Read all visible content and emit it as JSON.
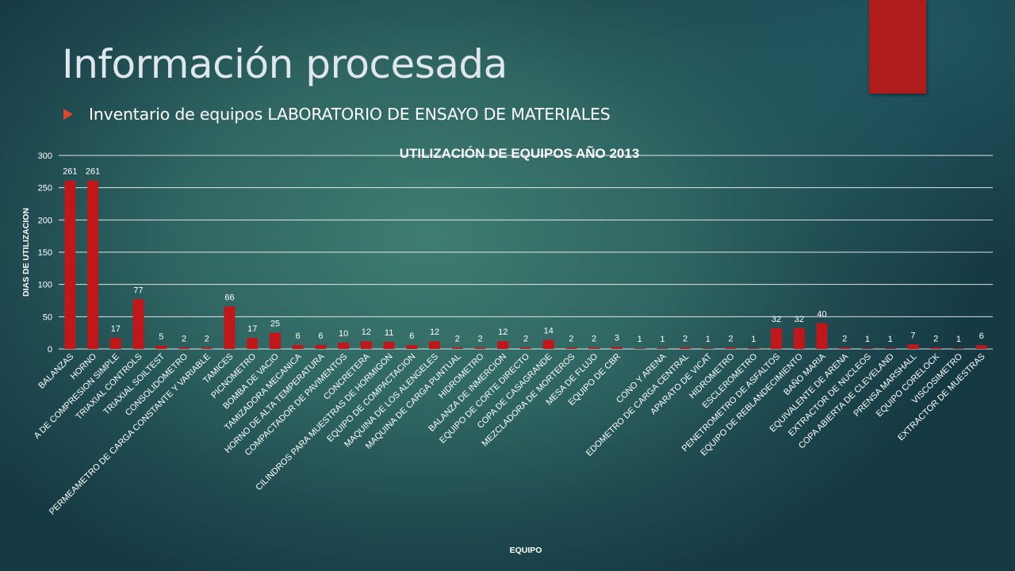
{
  "slide": {
    "title": "Información procesada",
    "bullet": "Inventario de equipos LABORATORIO DE ENSAYO DE MATERIALES"
  },
  "colors": {
    "accent": "#b01c1c",
    "bar": "#c0171b",
    "bullet": "#e0432f",
    "text": "#ffffff"
  },
  "icons": {
    "bullet": "triangle-bullet-icon"
  },
  "chart_data": {
    "type": "bar",
    "title": "UTILIZACIÓN DE EQUIPOS AÑO 2013",
    "xlabel": "EQUIPO",
    "ylabel": "DIAS DE UTILIZACION",
    "ylim": [
      0,
      300
    ],
    "yticks": [
      0,
      50,
      100,
      150,
      200,
      250,
      300
    ],
    "grid": true,
    "legend": false,
    "categories": [
      "BALANZAS",
      "HORNO",
      "A DE COMPRESION SIMPLE",
      "TRIAXIAL CONTROLS",
      "TRIAXIAL SOILTEST",
      "CONSOLIDOMETRO",
      "PERMEAMETRO DE CARGA CONSTANTE Y VARIABLE",
      "TAMICES",
      "PICNOMETRO",
      "BOMBA DE VACIO",
      "TAMIZADORA MECANICA",
      "HORNO DE ALTA TEMPERATURA",
      "COMPACTADOR DE PAVIMENTOS",
      "CONCRETERA",
      "CILINDROS PARA MUESTRAS DE HORMIGON",
      "EQUIPO DE COMPACTACION",
      "MAQUINA DE LOS ALENGELES",
      "MAQUINA DE CARGA PUNTUAL",
      "HIDROMETRO",
      "BALANZA DE INMERCION",
      "EQUIPO DE CORTE DIRECTO",
      "COPA DE CASAGRANDE",
      "MEZCLADORA DE MORTEROS",
      "MESA DE FLUJO",
      "EQUIPO DE CBR",
      "",
      "CONO Y ARENA",
      "EDOMETRO DE CARGA CENTRAL",
      "APARATO DE VICAT",
      "HIDROMETRO",
      "ESCLEROMETRO",
      "PENETROMETRO DE ASFALTOS",
      "EQUIPO DE REBLANDECIMIENTO",
      "BAÑO MARIA",
      "EQUIVALENTE DE ARENA",
      "EXTRACTOR DE NUCLEOS",
      "COPA ABIERTA DE CLEVELAND",
      "PRENSA MARSHALL",
      "EQUIPO CORELOCK",
      "VISCOSIMETRO",
      "EXTRACTOR DE MUESTRAS"
    ],
    "values": [
      261,
      261,
      17,
      77,
      5,
      2,
      2,
      66,
      17,
      25,
      6,
      6,
      10,
      12,
      11,
      6,
      12,
      2,
      2,
      12,
      2,
      14,
      2,
      2,
      3,
      1,
      1,
      2,
      1,
      2,
      1,
      32,
      32,
      40,
      2,
      1,
      1,
      7,
      2,
      1,
      6
    ],
    "data_labels": [
      "261",
      "261",
      "17",
      "77",
      "5",
      "2",
      "2",
      "66",
      "17",
      "25",
      "6",
      "6",
      "10",
      "12",
      "11",
      "6",
      "12",
      "2",
      "2",
      "12",
      "2",
      "14",
      "2",
      "2",
      "3",
      "1",
      "1",
      "2",
      "1",
      "2",
      "1",
      "32",
      "32",
      "40",
      "2",
      "1",
      "1",
      "7",
      "2",
      "1",
      "6"
    ]
  }
}
